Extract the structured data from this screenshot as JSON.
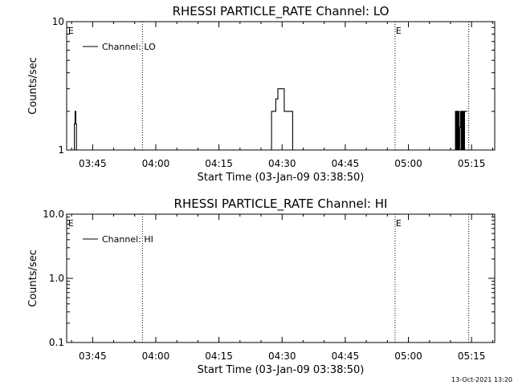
{
  "footer": {
    "timestamp": "13-Oct-2021 13:20"
  },
  "chart_data": [
    {
      "type": "line",
      "title": "RHESSI PARTICLE_RATE Channel: LO",
      "xlabel": "Start Time (03-Jan-09 03:38:50)",
      "ylabel": "Counts/sec",
      "y_scale": "log",
      "ylim": [
        1,
        10
      ],
      "y_ticks": [
        1,
        10
      ],
      "y_tick_labels": [
        "1",
        "10"
      ],
      "xlim": [
        "03:38:50",
        "05:20:30"
      ],
      "x_ticks": [
        "03:45",
        "04:00",
        "04:15",
        "04:30",
        "04:45",
        "05:00",
        "05:15"
      ],
      "legend": {
        "position": "top-left",
        "entries": [
          "Channel: LO"
        ]
      },
      "grid": false,
      "event_markers": [
        {
          "time": "03:39:00",
          "label": "E",
          "line": false
        },
        {
          "time": "03:56:50",
          "label": "",
          "line": true
        },
        {
          "time": "04:56:50",
          "label": "E",
          "line": true
        },
        {
          "time": "05:14:20",
          "label": "",
          "line": true
        }
      ],
      "series": [
        {
          "name": "Channel: LO",
          "segments": [
            {
              "x": [
                "03:40:30",
                "03:40:40",
                "03:40:50",
                "03:41:00",
                "03:41:10",
                "03:41:20"
              ],
              "y": [
                1,
                1.6,
                2,
                1.6,
                1,
                1
              ]
            },
            {
              "x": [
                "04:26:30",
                "04:27:00",
                "04:27:30",
                "04:28:00",
                "04:28:30",
                "04:29:00",
                "04:29:30",
                "04:30:00",
                "04:30:30",
                "04:31:00",
                "04:31:30",
                "04:32:00",
                "04:32:30",
                "04:33:00"
              ],
              "y": [
                1,
                1,
                2,
                2,
                2.5,
                3,
                3,
                3,
                2,
                2,
                2,
                2,
                1,
                1
              ]
            },
            {
              "x": [
                "05:10:00",
                "05:11:00",
                "05:11:10",
                "05:11:20",
                "05:11:30",
                "05:11:40",
                "05:11:50",
                "05:12:00",
                "05:12:10",
                "05:12:20",
                "05:12:30",
                "05:12:40",
                "05:12:50",
                "05:13:00",
                "05:13:10",
                "05:13:20",
                "05:13:30",
                "05:13:40",
                "05:14:00"
              ],
              "y": [
                1,
                1,
                2,
                1,
                2,
                1,
                2,
                1,
                1.5,
                2,
                1,
                2,
                1,
                2,
                1,
                2,
                2,
                2,
                2
              ]
            }
          ]
        }
      ]
    },
    {
      "type": "line",
      "title": "RHESSI PARTICLE_RATE Channel: HI",
      "xlabel": "Start Time (03-Jan-09 03:38:50)",
      "ylabel": "Counts/sec",
      "y_scale": "log",
      "ylim": [
        0.1,
        10
      ],
      "y_ticks": [
        0.1,
        1,
        10
      ],
      "y_tick_labels": [
        "0.1",
        "1.0",
        "10.0"
      ],
      "xlim": [
        "03:38:50",
        "05:20:30"
      ],
      "x_ticks": [
        "03:45",
        "04:00",
        "04:15",
        "04:30",
        "04:45",
        "05:00",
        "05:15"
      ],
      "legend": {
        "position": "top-left",
        "entries": [
          "Channel: HI"
        ]
      },
      "grid": false,
      "event_markers": [
        {
          "time": "03:39:00",
          "label": "E",
          "line": false
        },
        {
          "time": "03:56:50",
          "label": "",
          "line": true
        },
        {
          "time": "04:56:50",
          "label": "E",
          "line": true
        },
        {
          "time": "05:14:20",
          "label": "",
          "line": true
        }
      ],
      "series": [
        {
          "name": "Channel: HI",
          "segments": []
        }
      ]
    }
  ]
}
